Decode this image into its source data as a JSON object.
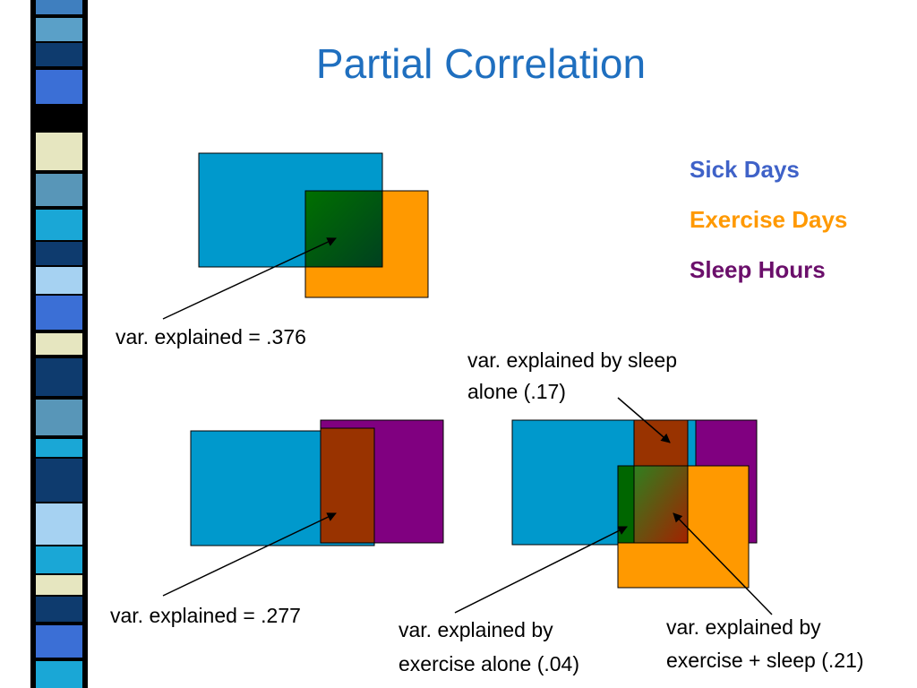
{
  "title": "Partial Correlation",
  "legend": [
    {
      "label": "Sick Days",
      "color": "#3f62c8"
    },
    {
      "label": "Exercise Days",
      "color": "#ff9900"
    },
    {
      "label": "Sleep Hours",
      "color": "#6b0f6b"
    }
  ],
  "labels": {
    "exercise_only": "var. explained = .376",
    "sleep_only": "var. explained = .277",
    "sleep_alone_line1": "var. explained by sleep",
    "sleep_alone_line2": "alone (.17)",
    "exercise_alone_line1": "var. explained by",
    "exercise_alone_line2": "exercise alone (.04)",
    "both_line1": "var. explained by",
    "both_line2": "exercise + sleep (.21)"
  },
  "colors": {
    "sick_days_box": "#0099cc",
    "exercise_box": "#ff9900",
    "sleep_box": "#800080",
    "overlap_green": "#006600",
    "overlap_brown": "#993300"
  }
}
